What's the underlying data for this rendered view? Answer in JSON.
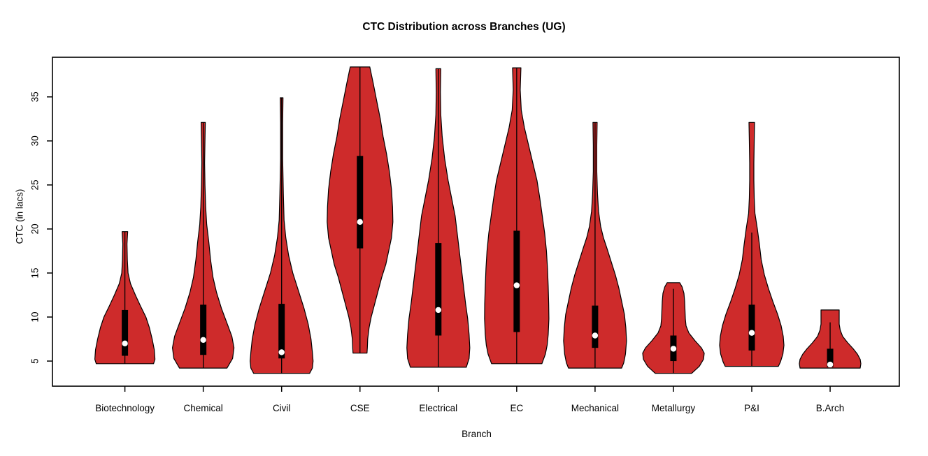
{
  "title": "CTC Distribution across Branches (UG)",
  "chart_data": {
    "type": "violin",
    "title": "CTC Distribution across Branches (UG)",
    "xlabel": "Branch",
    "ylabel": "CTC (in lacs)",
    "y_ticks": [
      5,
      10,
      15,
      20,
      25,
      30,
      35
    ],
    "ylim": [
      2.15,
      39.5
    ],
    "grid": false,
    "legend": "none",
    "categories": [
      "Biotechnology",
      "Chemical",
      "Civil",
      "CSE",
      "Electrical",
      "EC",
      "Mechanical",
      "Metallurgy",
      "P&I",
      "B.Arch"
    ],
    "colors": {
      "violin_fill": "#CE2B2B",
      "violin_outline": "#000000",
      "box_fill": "#000000",
      "median_dot": "#FFFFFF",
      "axis": "#000000",
      "text": "#000000"
    },
    "series": [
      {
        "label": "Biotechnology",
        "stats": {
          "violin_min": 4.7,
          "q1": 5.6,
          "median": 7.0,
          "q3": 10.8,
          "violin_max": 19.7,
          "line_top": 19.7
        },
        "profile": [
          [
            19.7,
            4
          ],
          [
            18.3,
            3
          ],
          [
            16.5,
            3.5
          ],
          [
            15,
            4.5
          ],
          [
            13.8,
            8
          ],
          [
            12.5,
            15
          ],
          [
            11.3,
            22
          ],
          [
            10,
            30
          ],
          [
            8.8,
            35
          ],
          [
            7.5,
            39
          ],
          [
            6.3,
            42
          ],
          [
            5.2,
            43
          ],
          [
            4.7,
            41
          ]
        ]
      },
      {
        "label": "Chemical",
        "stats": {
          "violin_min": 4.2,
          "q1": 5.7,
          "median": 7.4,
          "q3": 11.4,
          "violin_max": 32.1,
          "line_top": 32.1
        },
        "profile": [
          [
            32.1,
            3
          ],
          [
            30,
            2.5
          ],
          [
            27.5,
            2
          ],
          [
            25,
            2.5
          ],
          [
            22.5,
            3.5
          ],
          [
            20.5,
            5
          ],
          [
            18.5,
            8
          ],
          [
            16.5,
            10.5
          ],
          [
            14.5,
            14
          ],
          [
            12.8,
            19
          ],
          [
            11,
            26
          ],
          [
            9.3,
            34
          ],
          [
            7.8,
            41
          ],
          [
            6.5,
            44
          ],
          [
            5.3,
            42
          ],
          [
            4.2,
            34
          ]
        ]
      },
      {
        "label": "Civil",
        "stats": {
          "violin_min": 3.6,
          "q1": 5.3,
          "median": 6.0,
          "q3": 11.5,
          "violin_max": 34.9,
          "line_top": 34.9
        },
        "profile": [
          [
            34.9,
            2
          ],
          [
            32,
            1.5
          ],
          [
            28,
            1.5
          ],
          [
            24,
            2.5
          ],
          [
            21,
            3.5
          ],
          [
            19,
            6
          ],
          [
            17,
            10
          ],
          [
            15,
            16
          ],
          [
            13,
            24
          ],
          [
            11,
            32
          ],
          [
            9.2,
            38
          ],
          [
            7.5,
            42
          ],
          [
            6,
            44
          ],
          [
            5,
            45
          ],
          [
            4.2,
            44
          ],
          [
            3.6,
            40
          ]
        ]
      },
      {
        "label": "CSE",
        "stats": {
          "violin_min": 5.9,
          "q1": 17.8,
          "median": 20.8,
          "q3": 28.3,
          "violin_max": 38.4,
          "line_top": 38.4
        },
        "profile": [
          [
            38.4,
            14
          ],
          [
            36.5,
            19
          ],
          [
            34.5,
            24
          ],
          [
            32.5,
            29
          ],
          [
            30.5,
            33
          ],
          [
            28.5,
            38
          ],
          [
            26.5,
            42
          ],
          [
            24.5,
            45
          ],
          [
            22.5,
            46.5
          ],
          [
            20.8,
            47
          ],
          [
            19,
            45
          ],
          [
            17.5,
            41
          ],
          [
            16,
            37
          ],
          [
            14.5,
            31
          ],
          [
            13,
            26
          ],
          [
            11.5,
            21
          ],
          [
            10,
            16
          ],
          [
            8.8,
            13
          ],
          [
            7.5,
            11
          ],
          [
            6.5,
            10.5
          ],
          [
            5.9,
            10
          ]
        ]
      },
      {
        "label": "Electrical",
        "stats": {
          "violin_min": 4.3,
          "q1": 7.9,
          "median": 10.8,
          "q3": 18.4,
          "violin_max": 38.2,
          "line_top": 38.2
        },
        "profile": [
          [
            38.2,
            3.5
          ],
          [
            35.5,
            3
          ],
          [
            33,
            3.5
          ],
          [
            30.5,
            5.5
          ],
          [
            28,
            9
          ],
          [
            25.5,
            14
          ],
          [
            23.5,
            19
          ],
          [
            21.5,
            24
          ],
          [
            19.5,
            27
          ],
          [
            17.5,
            30
          ],
          [
            15.5,
            33
          ],
          [
            13.5,
            36
          ],
          [
            11.5,
            39
          ],
          [
            9.8,
            42
          ],
          [
            8,
            44
          ],
          [
            6.5,
            45
          ],
          [
            5.3,
            44
          ],
          [
            4.3,
            40
          ]
        ]
      },
      {
        "label": "EC",
        "stats": {
          "violin_min": 4.7,
          "q1": 8.3,
          "median": 13.6,
          "q3": 19.8,
          "violin_max": 38.3,
          "line_top": 38.3
        },
        "profile": [
          [
            38.3,
            6
          ],
          [
            35.8,
            5
          ],
          [
            33.5,
            6.5
          ],
          [
            31.5,
            11
          ],
          [
            29.5,
            17
          ],
          [
            27.5,
            23
          ],
          [
            25.5,
            29
          ],
          [
            23.5,
            33
          ],
          [
            21.5,
            36.5
          ],
          [
            19.5,
            40
          ],
          [
            17.5,
            42.5
          ],
          [
            15.5,
            44
          ],
          [
            13.5,
            45
          ],
          [
            11.5,
            45.8
          ],
          [
            9.8,
            46
          ],
          [
            8,
            45
          ],
          [
            6.8,
            43.5
          ],
          [
            5.8,
            41
          ],
          [
            4.7,
            36
          ]
        ]
      },
      {
        "label": "Mechanical",
        "stats": {
          "violin_min": 4.2,
          "q1": 6.5,
          "median": 7.9,
          "q3": 11.3,
          "violin_max": 32.1,
          "line_top": 32.1
        },
        "profile": [
          [
            32.1,
            3
          ],
          [
            29.5,
            2.5
          ],
          [
            26.5,
            2.5
          ],
          [
            24,
            3.5
          ],
          [
            22,
            5
          ],
          [
            20.3,
            8
          ],
          [
            19,
            12
          ],
          [
            17.8,
            17
          ],
          [
            16.3,
            23
          ],
          [
            14.8,
            29
          ],
          [
            13.3,
            34
          ],
          [
            11.8,
            38
          ],
          [
            10.3,
            42
          ],
          [
            8.8,
            44
          ],
          [
            7.3,
            45
          ],
          [
            5.8,
            43.5
          ],
          [
            4.8,
            41
          ],
          [
            4.2,
            38
          ]
        ]
      },
      {
        "label": "Metallurgy",
        "stats": {
          "violin_min": 3.6,
          "q1": 5.0,
          "median": 6.4,
          "q3": 7.9,
          "violin_max": 13.9,
          "line_top": 13.2
        },
        "profile": [
          [
            13.9,
            9
          ],
          [
            13.4,
            12.5
          ],
          [
            12.7,
            15
          ],
          [
            11.8,
            16
          ],
          [
            10.8,
            16.5
          ],
          [
            9.8,
            17
          ],
          [
            9,
            18
          ],
          [
            8.2,
            22
          ],
          [
            7.3,
            31
          ],
          [
            6.5,
            40
          ],
          [
            5.9,
            44
          ],
          [
            5.2,
            43
          ],
          [
            4.4,
            37
          ],
          [
            3.6,
            26
          ]
        ]
      },
      {
        "label": "P&I",
        "stats": {
          "violin_min": 4.4,
          "q1": 6.2,
          "median": 8.2,
          "q3": 11.4,
          "violin_max": 32.1,
          "line_top": 19.6
        },
        "profile": [
          [
            32.1,
            4
          ],
          [
            30,
            3.5
          ],
          [
            27.5,
            3
          ],
          [
            25.5,
            3
          ],
          [
            23.5,
            3.5
          ],
          [
            21.8,
            4.5
          ],
          [
            20,
            8
          ],
          [
            18.2,
            11
          ],
          [
            16.5,
            13.5
          ],
          [
            14.8,
            18
          ],
          [
            13.2,
            24
          ],
          [
            11.8,
            30
          ],
          [
            10.3,
            37
          ],
          [
            9,
            42
          ],
          [
            7.8,
            45
          ],
          [
            6.8,
            46
          ],
          [
            5.8,
            44.5
          ],
          [
            4.9,
            41
          ],
          [
            4.4,
            38
          ]
        ]
      },
      {
        "label": "B.Arch",
        "stats": {
          "violin_min": 4.2,
          "q1": 4.3,
          "median": 4.6,
          "q3": 6.4,
          "violin_max": 10.8,
          "line_top": 9.4
        },
        "profile": [
          [
            10.8,
            13
          ],
          [
            10,
            13
          ],
          [
            9.2,
            13
          ],
          [
            8.5,
            14.5
          ],
          [
            7.8,
            18
          ],
          [
            7.1,
            25
          ],
          [
            6.4,
            33
          ],
          [
            5.8,
            39
          ],
          [
            5.2,
            43
          ],
          [
            4.7,
            44
          ],
          [
            4.2,
            43
          ]
        ]
      }
    ]
  }
}
